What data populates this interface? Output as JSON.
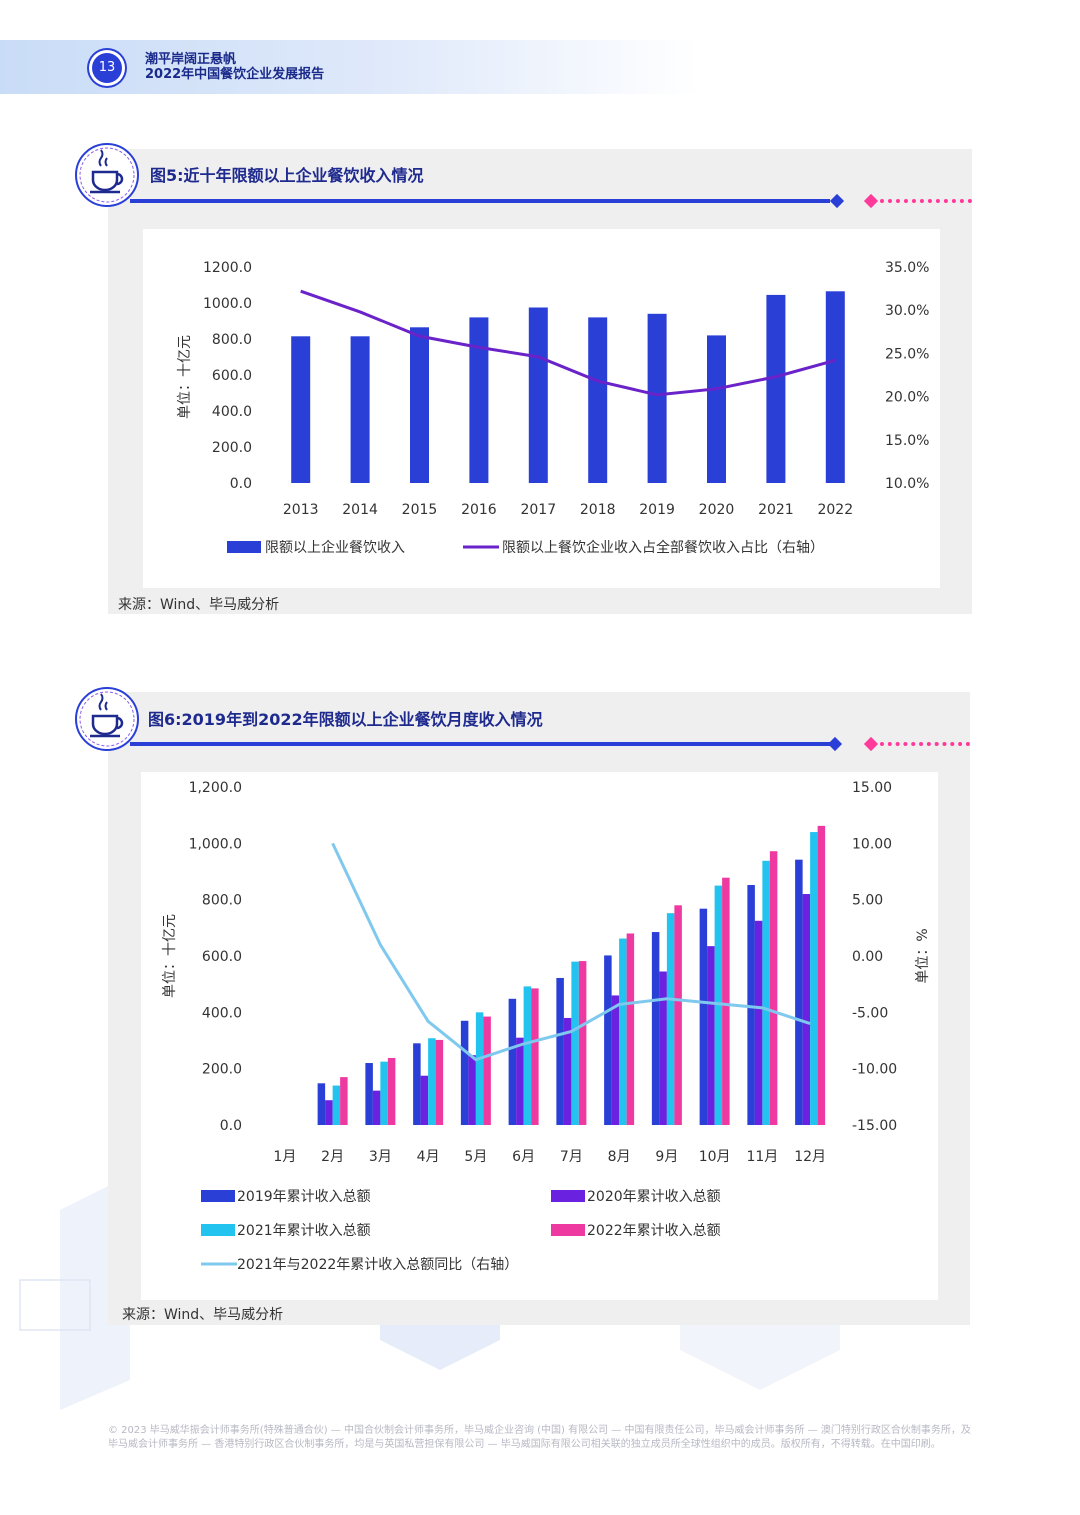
{
  "header": {
    "page_number": "13",
    "line1": "潮平岸阔正悬帆",
    "line2": "2022年中国餐饮企业发展报告"
  },
  "icons": {
    "figure_icon": "coffee-cup-icon"
  },
  "colors": {
    "accent": "#2a3fd6",
    "pink": "#ff3a9a",
    "purple_line": "#6a22c9",
    "bar_2019": "#2a3fd6",
    "bar_2020": "#6a22e0",
    "bar_2021": "#22c3ee",
    "bar_2022": "#ee3aa0",
    "line_yoy": "#7fc8ee"
  },
  "chart1": {
    "title": "图5:近十年限额以上企业餐饮收入情况",
    "source": "来源：Wind、毕马威分析"
  },
  "chart2": {
    "title": "图6:2019年到2022年限额以上企业餐饮月度收入情况",
    "source": "来源：Wind、毕马威分析"
  },
  "footer": {
    "text": "© 2023 毕马威华振会计师事务所(特殊普通合伙) — 中国合伙制会计师事务所，毕马威企业咨询 (中国) 有限公司 — 中国有限责任公司，毕马威会计师事务所 — 澳门特别行政区合伙制事务所，及毕马威会计师事务所 — 香港特别行政区合伙制事务所，均是与英国私营担保有限公司 — 毕马威国际有限公司相关联的独立成员所全球性组织中的成员。版权所有，不得转载。在中国印刷。"
  },
  "chart_data": [
    {
      "type": "bar",
      "title": "图5:近十年限额以上企业餐饮收入情况",
      "categories": [
        "2013",
        "2014",
        "2015",
        "2016",
        "2017",
        "2018",
        "2019",
        "2020",
        "2021",
        "2022"
      ],
      "series": [
        {
          "name": "限额以上企业餐饮收入",
          "type": "bar",
          "axis": "left",
          "values": [
            815,
            815,
            865,
            920,
            975,
            920,
            940,
            820,
            1045,
            1065
          ]
        },
        {
          "name": "限额以上餐饮企业收入占全部餐饮收入占比（右轴）",
          "type": "line",
          "axis": "right",
          "values": [
            32.2,
            29.8,
            27.0,
            25.7,
            24.6,
            21.8,
            20.2,
            20.9,
            22.3,
            24.2
          ]
        }
      ],
      "ylabel": "单位：十亿元",
      "ylim": [
        0,
        1200
      ],
      "yticks": [
        "0.0",
        "200.0",
        "400.0",
        "600.0",
        "800.0",
        "1000.0",
        "1200.0"
      ],
      "y2lim": [
        10,
        35
      ],
      "y2ticks": [
        "10.0%",
        "15.0%",
        "20.0%",
        "25.0%",
        "30.0%",
        "35.0%"
      ],
      "legend": "bottom",
      "grid": false
    },
    {
      "type": "bar",
      "title": "图6:2019年到2022年限额以上企业餐饮月度收入情况",
      "categories": [
        "1月",
        "2月",
        "3月",
        "4月",
        "5月",
        "6月",
        "7月",
        "8月",
        "9月",
        "10月",
        "11月",
        "12月"
      ],
      "series": [
        {
          "name": "2019年累计收入总额",
          "type": "bar",
          "axis": "left",
          "values": [
            null,
            148,
            220,
            290,
            370,
            448,
            522,
            602,
            685,
            768,
            852,
            942
          ]
        },
        {
          "name": "2020年累计收入总额",
          "type": "bar",
          "axis": "left",
          "values": [
            null,
            88,
            122,
            175,
            248,
            310,
            380,
            460,
            545,
            635,
            725,
            820
          ]
        },
        {
          "name": "2021年累计收入总额",
          "type": "bar",
          "axis": "left",
          "values": [
            null,
            140,
            225,
            308,
            400,
            492,
            580,
            662,
            752,
            850,
            938,
            1040
          ]
        },
        {
          "name": "2022年累计收入总额",
          "type": "bar",
          "axis": "left",
          "values": [
            null,
            170,
            238,
            302,
            385,
            485,
            582,
            680,
            780,
            878,
            972,
            1062
          ]
        },
        {
          "name": "2021年与2022年累计收入总额同比（右轴）",
          "type": "line",
          "axis": "right",
          "values": [
            null,
            10.0,
            1.0,
            -5.8,
            -9.2,
            -7.8,
            -6.7,
            -4.3,
            -3.8,
            -4.2,
            -4.6,
            -6.0
          ]
        }
      ],
      "ylabel": "单位：十亿元",
      "y2label": "单位：%",
      "ylim": [
        0,
        1200
      ],
      "yticks": [
        "0.0",
        "200.0",
        "400.0",
        "600.0",
        "800.0",
        "1,000.0",
        "1,200.0"
      ],
      "y2lim": [
        -15,
        15
      ],
      "y2ticks": [
        "-15.00",
        "-10.00",
        "-5.00",
        "0.00",
        "5.00",
        "10.00",
        "15.00"
      ],
      "legend": "bottom",
      "grid": false
    }
  ]
}
